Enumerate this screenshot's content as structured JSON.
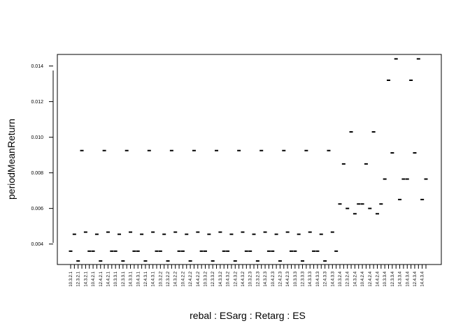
{
  "chart_data": {
    "type": "scatter",
    "xlabel": "rebal : ESarg : Retarg : ES",
    "ylabel": "periodMeanReturn",
    "ylim": [
      0.00285,
      0.01465
    ],
    "yticks": [
      0.004,
      0.006,
      0.008,
      0.01,
      0.012,
      0.014
    ],
    "ytick_labels": [
      "0.004",
      "0.006",
      "0.008",
      "0.010",
      "0.012",
      "0.014"
    ],
    "grid": false,
    "categories": [
      "10.3.2.1",
      "12.3.2.1",
      "14.3.2.1",
      "10.4.2.1",
      "12.4.2.1",
      "14.4.2.1",
      "10.3.3.1",
      "12.3.3.1",
      "14.3.3.1",
      "10.4.3.1",
      "12.4.3.1",
      "14.4.3.1",
      "10.3.2.2",
      "12.3.2.2",
      "14.3.2.2",
      "10.4.2.2",
      "12.4.2.2",
      "14.4.2.2",
      "10.3.3.2",
      "12.3.3.2",
      "14.3.3.2",
      "10.4.3.2",
      "12.4.3.2",
      "14.4.3.2",
      "10.3.2.3",
      "12.3.2.3",
      "14.3.2.3",
      "10.4.2.3",
      "12.4.2.3",
      "14.4.2.3",
      "10.3.3.3",
      "12.3.3.3",
      "14.3.3.3",
      "10.4.3.3",
      "12.4.3.3",
      "14.4.3.3",
      "10.3.2.4",
      "12.3.2.4",
      "14.3.2.4",
      "10.4.2.4",
      "12.4.2.4",
      "14.4.2.4",
      "10.3.3.4",
      "12.3.3.4",
      "14.3.3.4",
      "10.4.3.4",
      "12.4.3.4",
      "14.4.3.4"
    ],
    "x_positions": [
      1,
      2,
      3,
      4,
      5,
      6,
      7,
      8,
      9,
      10,
      11,
      12,
      13,
      14,
      15,
      16,
      17,
      18,
      19,
      20,
      21,
      22,
      23,
      24,
      25,
      26,
      27,
      28,
      29,
      30,
      31,
      32,
      33,
      34,
      35,
      36,
      37,
      38,
      39,
      40,
      41,
      42,
      43,
      44,
      45,
      46,
      47,
      48,
      49,
      50,
      51,
      52,
      53,
      54,
      55,
      56,
      57,
      58,
      59,
      60,
      61,
      62,
      63,
      64,
      65,
      66,
      67,
      68,
      69,
      70,
      71,
      72,
      73,
      74,
      75,
      76,
      77,
      78,
      79,
      80,
      81,
      82,
      83,
      84,
      85,
      86,
      87,
      88,
      89,
      90,
      91,
      92,
      93,
      94,
      95,
      96
    ],
    "values": [
      0.0036,
      0.00455,
      0.00305,
      0.00925,
      0.00467,
      0.0036,
      0.0036,
      0.00455,
      0.00305,
      0.00925,
      0.00467,
      0.0036,
      0.0036,
      0.00455,
      0.00305,
      0.00925,
      0.00467,
      0.0036,
      0.0036,
      0.00455,
      0.00305,
      0.00925,
      0.00467,
      0.0036,
      0.0036,
      0.00455,
      0.00305,
      0.00925,
      0.00467,
      0.0036,
      0.0036,
      0.00455,
      0.00305,
      0.00925,
      0.00467,
      0.0036,
      0.0036,
      0.00455,
      0.00305,
      0.00925,
      0.00467,
      0.0036,
      0.0036,
      0.00455,
      0.00305,
      0.00925,
      0.00467,
      0.0036,
      0.0036,
      0.00455,
      0.00305,
      0.00925,
      0.00467,
      0.0036,
      0.0036,
      0.00455,
      0.00305,
      0.00925,
      0.00467,
      0.0036,
      0.0036,
      0.00455,
      0.00305,
      0.00925,
      0.00467,
      0.0036,
      0.0036,
      0.00455,
      0.00305,
      0.00925,
      0.00467,
      0.0036,
      0.00625,
      0.0085,
      0.006,
      0.0103,
      0.0057,
      0.00625,
      0.00625,
      0.0085,
      0.006,
      0.0103,
      0.0057,
      0.00625,
      0.00765,
      0.0132,
      0.00912,
      0.0144,
      0.0065,
      0.00765,
      0.00765,
      0.0132,
      0.00912,
      0.0144,
      0.0065,
      0.00765
    ]
  }
}
